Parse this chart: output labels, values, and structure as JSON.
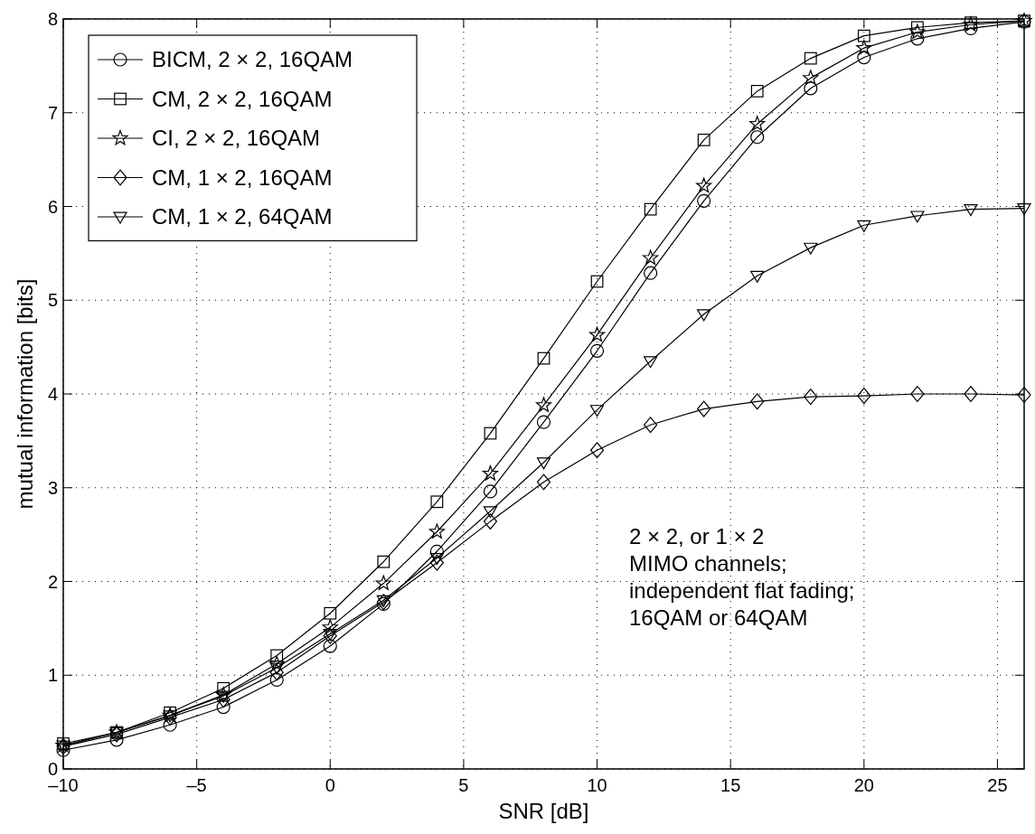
{
  "chart_data": {
    "type": "line",
    "xlabel": "SNR [dB]",
    "ylabel": "mutual information [bits]",
    "x": [
      -10,
      -8,
      -6,
      -4,
      -2,
      0,
      2,
      4,
      6,
      8,
      10,
      12,
      14,
      16,
      18,
      20,
      22,
      24,
      26
    ],
    "series": [
      {
        "name": "BICM, 2 × 2, 16QAM",
        "color": "#000000",
        "marker": "circle",
        "values": [
          0.2,
          0.31,
          0.47,
          0.66,
          0.95,
          1.31,
          1.76,
          2.32,
          2.96,
          3.7,
          4.46,
          5.29,
          6.06,
          6.74,
          7.26,
          7.59,
          7.79,
          7.9,
          7.97
        ]
      },
      {
        "name": "CM, 2 × 2, 16QAM",
        "color": "#000000",
        "marker": "square",
        "values": [
          0.27,
          0.39,
          0.6,
          0.86,
          1.21,
          1.66,
          2.21,
          2.85,
          3.58,
          4.38,
          5.2,
          5.97,
          6.71,
          7.23,
          7.58,
          7.82,
          7.91,
          7.96,
          7.98
        ]
      },
      {
        "name": "CI, 2 × 2, 16QAM",
        "color": "#000000",
        "marker": "star",
        "values": [
          0.25,
          0.39,
          0.57,
          0.79,
          1.12,
          1.51,
          1.98,
          2.53,
          3.15,
          3.88,
          4.63,
          5.45,
          6.22,
          6.88,
          7.37,
          7.69,
          7.86,
          7.94,
          7.98
        ]
      },
      {
        "name": "CM, 1 × 2, 16QAM",
        "color": "#000000",
        "marker": "diamond",
        "values": [
          0.24,
          0.37,
          0.55,
          0.74,
          1.03,
          1.42,
          1.78,
          2.2,
          2.64,
          3.06,
          3.4,
          3.67,
          3.84,
          3.92,
          3.97,
          3.98,
          4.0,
          4.0,
          3.99
        ]
      },
      {
        "name": "CM, 1 × 2, 64QAM",
        "color": "#000000",
        "marker": "triangle",
        "values": [
          0.25,
          0.39,
          0.57,
          0.78,
          1.08,
          1.44,
          1.8,
          2.25,
          2.75,
          3.27,
          3.83,
          4.35,
          4.85,
          5.26,
          5.56,
          5.8,
          5.9,
          5.97,
          5.98
        ]
      }
    ],
    "xlim": [
      -10,
      26
    ],
    "xticks": [
      {
        "value": -10,
        "label": "–10"
      },
      {
        "value": -5,
        "label": "–5"
      },
      0,
      5,
      10,
      15,
      20,
      25
    ],
    "ylim": [
      0,
      8
    ],
    "yticks": [
      0,
      1,
      2,
      3,
      4,
      5,
      6,
      7,
      8
    ],
    "grid": true,
    "legend": "top left",
    "line_style": "solid",
    "annotations": [
      "2 × 2, or 1 × 2\nMIMO channels;\nindependent flat fading;\n16QAM or 64QAM"
    ]
  }
}
